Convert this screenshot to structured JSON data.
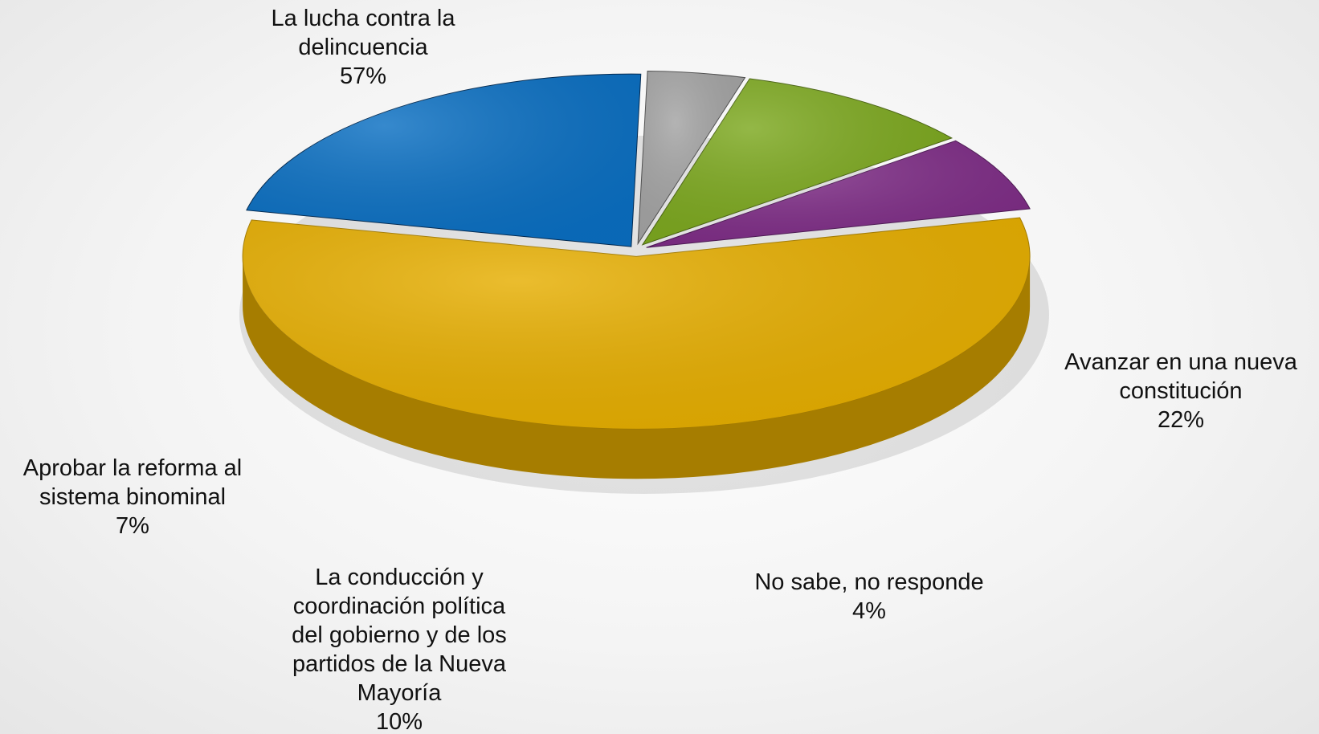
{
  "chart_data": {
    "type": "pie",
    "slices": [
      {
        "key": "delincuencia",
        "label_lines": [
          "La lucha contra la",
          "delincuencia"
        ],
        "percent_label": "57%",
        "value": 57,
        "color": "#E6AE00",
        "side_color": "#A67D00"
      },
      {
        "key": "constitucion",
        "label_lines": [
          "Avanzar en una nueva",
          "constitución"
        ],
        "percent_label": "22%",
        "value": 22,
        "color": "#0A6FC2",
        "side_color": "#022A52"
      },
      {
        "key": "nsnr",
        "label_lines": [
          "No sabe, no responde"
        ],
        "percent_label": "4%",
        "value": 4,
        "color": "#A3A3A3",
        "side_color": "#4F4F4F"
      },
      {
        "key": "conduccion",
        "label_lines": [
          "La conducción y",
          "coordinación política",
          "del gobierno y de los",
          "partidos de la Nueva",
          "Mayoría"
        ],
        "percent_label": "10%",
        "value": 10,
        "color": "#7CA81E",
        "side_color": "#4A6512"
      },
      {
        "key": "binominal",
        "label_lines": [
          "Aprobar la reforma al",
          "sistema binominal"
        ],
        "percent_label": "7%",
        "value": 7,
        "color": "#7E2C86",
        "side_color": "#4E1A55"
      }
    ]
  }
}
